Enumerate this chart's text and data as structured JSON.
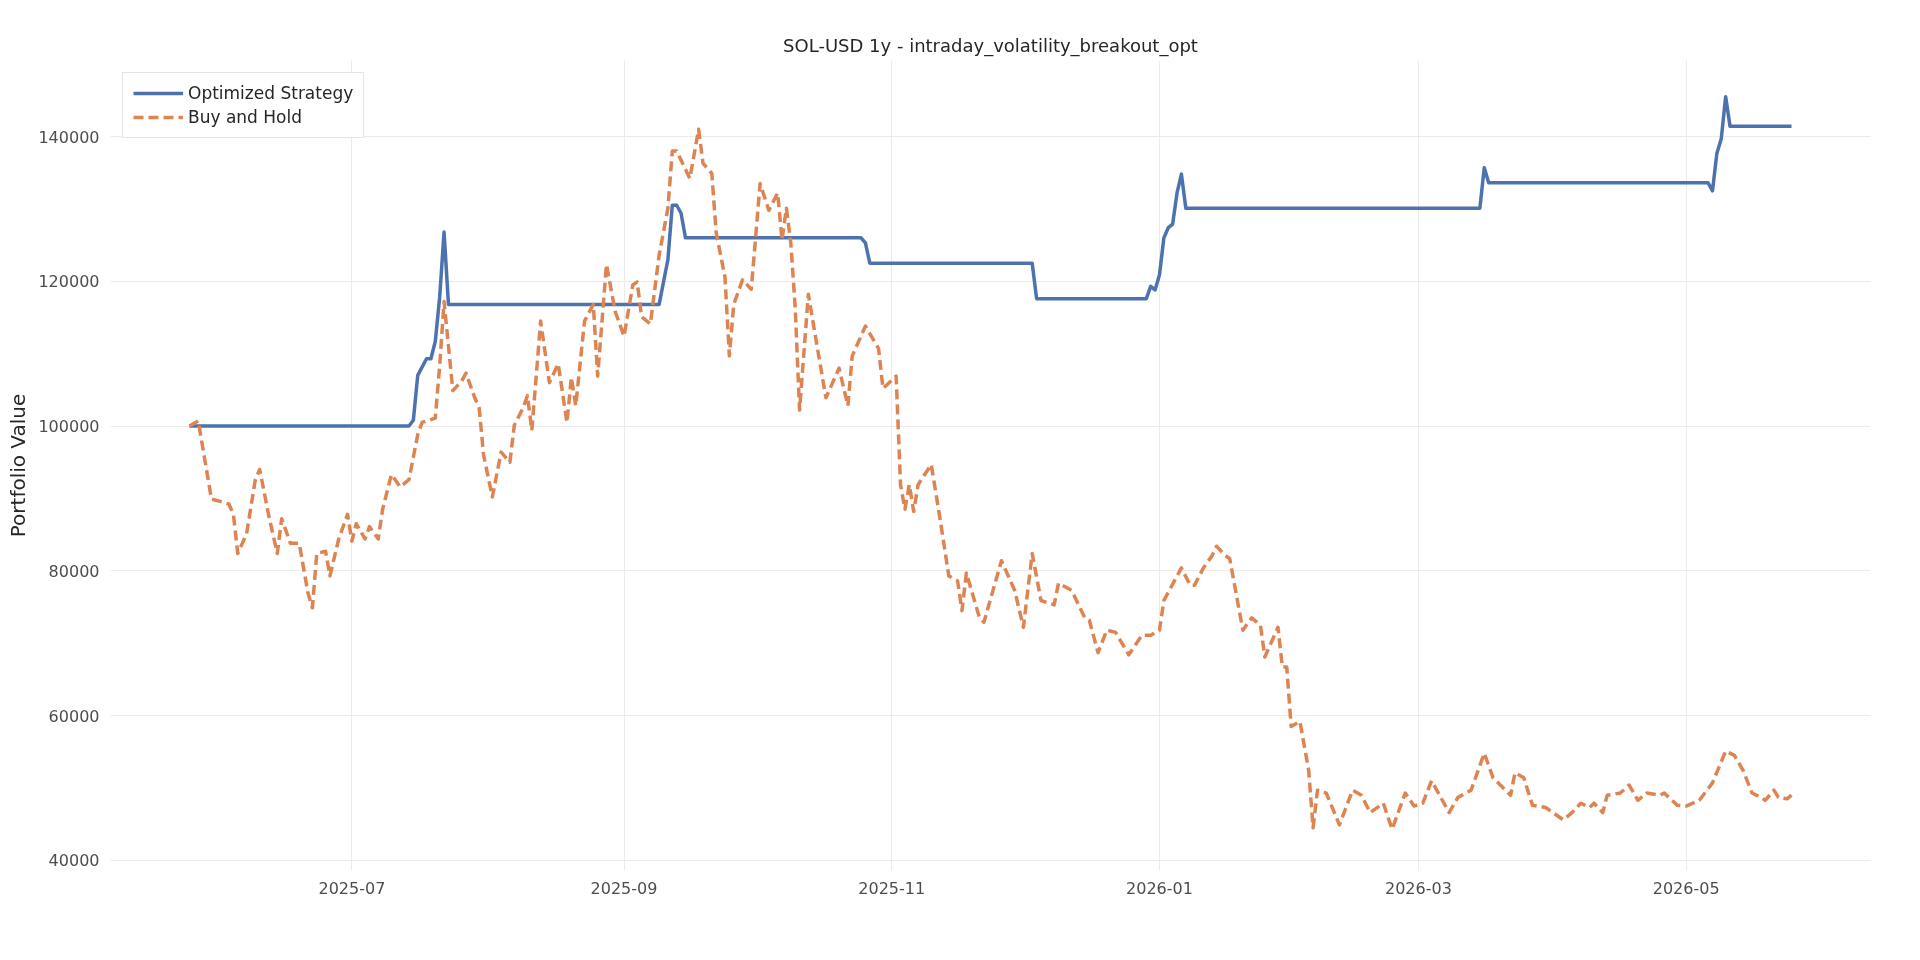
{
  "chart_data": {
    "type": "line",
    "title": "SOL-USD 1y - intraday_volatility_breakout_opt",
    "ylabel": "Portfolio Value",
    "xlim": [
      "2025-05-07",
      "2026-06-12"
    ],
    "ylim": [
      38600,
      150500
    ],
    "xticks": [
      {
        "value": "2025-07-01",
        "label": "2025-07"
      },
      {
        "value": "2025-09-01",
        "label": "2025-09"
      },
      {
        "value": "2025-11-01",
        "label": "2025-11"
      },
      {
        "value": "2026-01-01",
        "label": "2026-01"
      },
      {
        "value": "2026-03-01",
        "label": "2026-03"
      },
      {
        "value": "2026-05-01",
        "label": "2026-05"
      }
    ],
    "yticks": [
      40000,
      60000,
      80000,
      100000,
      120000,
      140000
    ],
    "grid": true,
    "legend": "top left",
    "series": [
      {
        "name": "Optimized Strategy",
        "color": "#4c72b0",
        "line_style": "solid",
        "x": [
          "2025-05-25",
          "2025-07-14",
          "2025-07-15",
          "2025-07-16",
          "2025-07-18",
          "2025-07-19",
          "2025-07-20",
          "2025-07-21",
          "2025-07-22",
          "2025-07-23",
          "2025-09-09",
          "2025-09-11",
          "2025-09-12",
          "2025-09-13",
          "2025-09-14",
          "2025-09-15",
          "2025-10-25",
          "2025-10-26",
          "2025-10-27",
          "2025-12-03",
          "2025-12-04",
          "2025-12-29",
          "2025-12-30",
          "2025-12-31",
          "2026-01-01",
          "2026-01-02",
          "2026-01-03",
          "2026-01-04",
          "2026-01-05",
          "2026-01-06",
          "2026-01-07",
          "2026-03-15",
          "2026-03-16",
          "2026-03-17",
          "2026-05-06",
          "2026-05-07",
          "2026-05-08",
          "2026-05-09",
          "2026-05-10",
          "2026-05-11",
          "2026-05-25"
        ],
        "values": [
          100000,
          100000,
          100800,
          107000,
          109300,
          109300,
          111700,
          117800,
          126800,
          116800,
          116800,
          123000,
          130500,
          130500,
          129400,
          126000,
          126000,
          125300,
          122500,
          122500,
          117600,
          117600,
          119300,
          118800,
          120900,
          126000,
          127400,
          127900,
          132200,
          134800,
          130100,
          130100,
          135700,
          133600,
          133600,
          132500,
          137700,
          139700,
          145500,
          141400,
          141400
        ]
      },
      {
        "name": "Buy and Hold",
        "color": "#dd8452",
        "line_style": "dashed",
        "x": [
          "2025-05-25",
          "2025-05-27",
          "2025-05-30",
          "2025-06-01",
          "2025-06-03",
          "2025-06-04",
          "2025-06-05",
          "2025-06-07",
          "2025-06-09",
          "2025-06-10",
          "2025-06-12",
          "2025-06-14",
          "2025-06-15",
          "2025-06-17",
          "2025-06-19",
          "2025-06-21",
          "2025-06-22",
          "2025-06-23",
          "2025-06-25",
          "2025-06-26",
          "2025-06-28",
          "2025-06-30",
          "2025-07-01",
          "2025-07-02",
          "2025-07-04",
          "2025-07-05",
          "2025-07-07",
          "2025-07-08",
          "2025-07-10",
          "2025-07-12",
          "2025-07-14",
          "2025-07-16",
          "2025-07-17",
          "2025-07-20",
          "2025-07-21",
          "2025-07-22",
          "2025-07-24",
          "2025-07-26",
          "2025-07-27",
          "2025-07-29",
          "2025-07-30",
          "2025-07-31",
          "2025-08-02",
          "2025-08-04",
          "2025-08-06",
          "2025-08-07",
          "2025-08-09",
          "2025-08-10",
          "2025-08-11",
          "2025-08-13",
          "2025-08-15",
          "2025-08-17",
          "2025-08-19",
          "2025-08-20",
          "2025-08-21",
          "2025-08-23",
          "2025-08-25",
          "2025-08-26",
          "2025-08-28",
          "2025-08-30",
          "2025-09-01",
          "2025-09-03",
          "2025-09-04",
          "2025-09-05",
          "2025-09-07",
          "2025-09-09",
          "2025-09-11",
          "2025-09-12",
          "2025-09-13",
          "2025-09-16",
          "2025-09-17",
          "2025-09-18",
          "2025-09-19",
          "2025-09-21",
          "2025-09-22",
          "2025-09-24",
          "2025-09-25",
          "2025-09-26",
          "2025-09-28",
          "2025-09-30",
          "2025-10-02",
          "2025-10-04",
          "2025-10-06",
          "2025-10-07",
          "2025-10-08",
          "2025-10-09",
          "2025-10-10",
          "2025-10-11",
          "2025-10-13",
          "2025-10-15",
          "2025-10-17",
          "2025-10-20",
          "2025-10-22",
          "2025-10-23",
          "2025-10-26",
          "2025-10-29",
          "2025-10-30",
          "2025-11-02",
          "2025-11-03",
          "2025-11-04",
          "2025-11-05",
          "2025-11-06",
          "2025-11-07",
          "2025-11-10",
          "2025-11-12",
          "2025-11-14",
          "2025-11-16",
          "2025-11-17",
          "2025-11-18",
          "2025-11-21",
          "2025-11-22",
          "2025-11-26",
          "2025-11-29",
          "2025-12-01",
          "2025-12-03",
          "2025-12-05",
          "2025-12-08",
          "2025-12-09",
          "2025-12-12",
          "2025-12-15",
          "2025-12-16",
          "2025-12-18",
          "2025-12-20",
          "2025-12-22",
          "2025-12-25",
          "2025-12-28",
          "2025-12-30",
          "2026-01-01",
          "2026-01-02",
          "2026-01-06",
          "2026-01-08",
          "2026-01-09",
          "2026-01-11",
          "2026-01-13",
          "2026-01-14",
          "2026-01-16",
          "2026-01-17",
          "2026-01-20",
          "2026-01-22",
          "2026-01-24",
          "2026-01-25",
          "2026-01-28",
          "2026-01-29",
          "2026-01-30",
          "2026-01-31",
          "2026-02-02",
          "2026-02-04",
          "2026-02-05",
          "2026-02-06",
          "2026-02-08",
          "2026-02-11",
          "2026-02-14",
          "2026-02-16",
          "2026-02-18",
          "2026-02-21",
          "2026-02-23",
          "2026-02-26",
          "2026-02-28",
          "2026-03-02",
          "2026-03-04",
          "2026-03-08",
          "2026-03-10",
          "2026-03-13",
          "2026-03-16",
          "2026-03-18",
          "2026-03-22",
          "2026-03-23",
          "2026-03-25",
          "2026-03-27",
          "2026-03-30",
          "2026-04-03",
          "2026-04-05",
          "2026-04-07",
          "2026-04-09",
          "2026-04-10",
          "2026-04-12",
          "2026-04-13",
          "2026-04-16",
          "2026-04-18",
          "2026-04-20",
          "2026-04-22",
          "2026-04-25",
          "2026-04-26",
          "2026-04-29",
          "2026-05-01",
          "2026-05-04",
          "2026-05-07",
          "2026-05-10",
          "2026-05-12",
          "2026-05-14",
          "2026-05-16",
          "2026-05-18",
          "2026-05-19",
          "2026-05-21",
          "2026-05-22",
          "2026-05-24",
          "2026-05-25"
        ],
        "values": [
          100000,
          100700,
          89900,
          89600,
          89200,
          87800,
          82400,
          85100,
          92600,
          94000,
          87800,
          82400,
          87200,
          83800,
          83800,
          76900,
          74900,
          82400,
          82700,
          79300,
          84400,
          87800,
          84100,
          86500,
          84400,
          86100,
          84400,
          88500,
          93300,
          91600,
          92600,
          98800,
          100500,
          101100,
          108300,
          117200,
          104900,
          106200,
          107300,
          103900,
          102500,
          96000,
          90200,
          96400,
          95000,
          100100,
          102500,
          104200,
          99400,
          114500,
          106000,
          108600,
          100500,
          106700,
          102800,
          114500,
          116800,
          106900,
          122300,
          115800,
          112400,
          119500,
          119900,
          115100,
          114100,
          123600,
          130100,
          138000,
          138000,
          134200,
          137600,
          141000,
          136300,
          134900,
          126700,
          120600,
          109700,
          116800,
          120200,
          118900,
          133500,
          129800,
          132200,
          125700,
          130100,
          125300,
          116400,
          102200,
          118200,
          111000,
          103900,
          108000,
          102800,
          109700,
          113800,
          110700,
          105200,
          106900,
          91900,
          88500,
          91900,
          88200,
          91900,
          94700,
          87200,
          79300,
          78600,
          74500,
          79700,
          73500,
          72900,
          81400,
          77300,
          72200,
          82400,
          75900,
          75300,
          78300,
          77300,
          73500,
          73200,
          68700,
          71800,
          71500,
          68400,
          71100,
          71100,
          71800,
          75900,
          80400,
          78000,
          78000,
          80400,
          82100,
          83400,
          82100,
          81700,
          71800,
          73500,
          72500,
          68100,
          72200,
          66700,
          66700,
          58500,
          59200,
          52400,
          44500,
          49700,
          49300,
          44900,
          49700,
          49000,
          46600,
          47900,
          44300,
          49300,
          47500,
          47900,
          51000,
          46600,
          48700,
          49700,
          54800,
          51400,
          49000,
          52100,
          51400,
          47600,
          47300,
          45600,
          46600,
          47900,
          47300,
          47900,
          46600,
          49000,
          49300,
          50400,
          48300,
          49300,
          49000,
          49300,
          47600,
          47500,
          48300,
          50700,
          55100,
          54500,
          52400,
          49300,
          48700,
          48300,
          49700,
          48700,
          48500,
          49000
        ]
      }
    ]
  }
}
